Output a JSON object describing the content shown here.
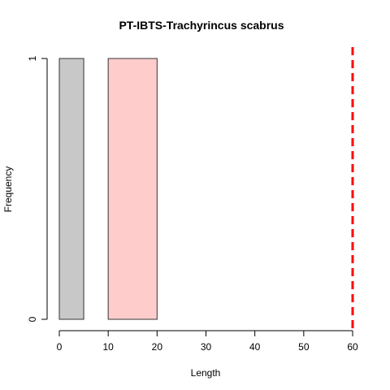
{
  "chart_data": {
    "type": "bar",
    "title": "PT-IBTS-Trachyrincus scabrus",
    "xlabel": "Length",
    "ylabel": "Frequency",
    "xlim": [
      0,
      60
    ],
    "ylim": [
      0,
      1
    ],
    "x_ticks": [
      "0",
      "10",
      "20",
      "30",
      "40",
      "50",
      "60"
    ],
    "y_ticks": [
      "0",
      "1"
    ],
    "bars": [
      {
        "x_start": 0,
        "x_end": 5,
        "value": 1,
        "color": "#c8c8c8"
      },
      {
        "x_start": 10,
        "x_end": 20,
        "value": 1,
        "color": "#ffcccc"
      }
    ],
    "reference_line": {
      "x": 60,
      "color": "#ff0000",
      "style": "dashed"
    },
    "grid": false
  }
}
